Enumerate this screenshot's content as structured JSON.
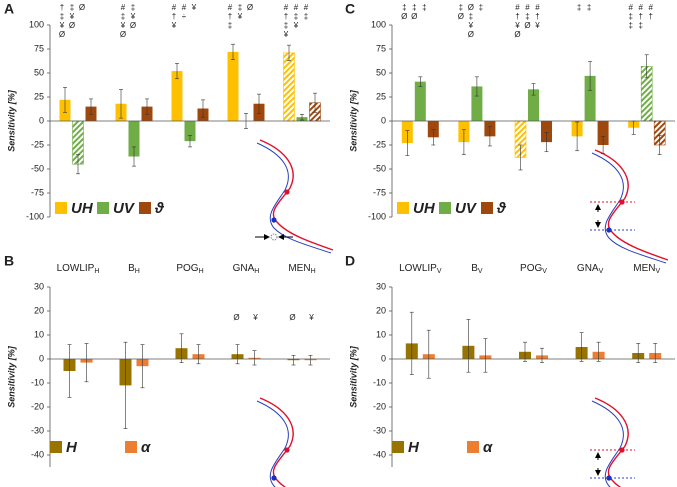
{
  "chart_data": [
    {
      "type": "bar",
      "panel_label": "A",
      "ylabel": "Sensitivity [%]",
      "ylim": [
        -100,
        100
      ],
      "yticks": [
        -100,
        -75,
        -50,
        -25,
        0,
        25,
        50,
        75,
        100
      ],
      "series": [
        {
          "name": "UH",
          "color": "#ffc000",
          "values": [
            22,
            18,
            52,
            72,
            71
          ],
          "errors": [
            13,
            15,
            8,
            8,
            8
          ],
          "hatched": [
            false,
            false,
            false,
            false,
            true
          ]
        },
        {
          "name": "UV",
          "color": "#70ad47",
          "values": [
            -45,
            -37,
            -21,
            0,
            4
          ],
          "errors": [
            10,
            10,
            6,
            8,
            3
          ],
          "hatched": [
            true,
            false,
            false,
            false,
            false
          ]
        },
        {
          "name": "ϑ",
          "color": "#9e480e",
          "values": [
            15,
            15,
            13,
            18,
            19
          ],
          "errors": [
            8,
            8,
            9,
            10,
            10
          ],
          "hatched": [
            false,
            false,
            false,
            false,
            true
          ]
        }
      ],
      "significance": [
        [
          [
            "†",
            "‡",
            "¥",
            "Ø"
          ],
          [
            "‡",
            "¥",
            "Ø"
          ],
          [
            "Ø"
          ]
        ],
        [
          [
            "#",
            "‡",
            "¥",
            "Ø"
          ],
          [
            "‡",
            "¥",
            "Ø"
          ]
        ],
        [
          [
            "#",
            "†",
            "¥"
          ],
          [
            "#",
            "÷"
          ],
          [
            "¥"
          ]
        ],
        [
          [
            "#",
            "†",
            "‡"
          ],
          [
            "‡",
            "¥"
          ],
          [
            "Ø"
          ]
        ],
        [
          [
            "#",
            "†",
            "‡",
            "¥"
          ],
          [
            "#",
            "‡",
            "¥"
          ],
          [
            "#",
            "‡"
          ]
        ]
      ]
    },
    {
      "type": "bar",
      "panel_label": "B",
      "ylabel": "Sensitivity [%]",
      "categories": [
        {
          "base": "LOWLIP",
          "sub": "H"
        },
        {
          "base": "B",
          "sub": "H"
        },
        {
          "base": "POG",
          "sub": "H"
        },
        {
          "base": "GNA",
          "sub": "H"
        },
        {
          "base": "MEN",
          "sub": "H"
        }
      ],
      "ylim": [
        -45,
        30
      ],
      "yticks": [
        -40,
        -30,
        -20,
        -10,
        0,
        10,
        20,
        30
      ],
      "series": [
        {
          "name": "H",
          "color": "#997300",
          "values": [
            -5,
            -11,
            4.5,
            2,
            -0.5
          ],
          "errors": [
            11,
            18,
            6,
            4,
            2
          ],
          "hatched": [
            false,
            false,
            false,
            false,
            false
          ]
        },
        {
          "name": "α",
          "color": "#ed7d31",
          "values": [
            -1.5,
            -3,
            2,
            0.5,
            -0.5
          ],
          "errors": [
            8,
            9,
            4,
            3,
            2
          ],
          "hatched": [
            false,
            false,
            false,
            false,
            false
          ]
        }
      ],
      "significance": [
        [],
        [],
        [],
        [
          [
            "Ø"
          ],
          [
            "¥"
          ]
        ],
        [
          [
            "Ø"
          ],
          [
            "¥"
          ]
        ]
      ]
    },
    {
      "type": "bar",
      "panel_label": "C",
      "ylabel": "Sensitivity [%]",
      "ylim": [
        -100,
        100
      ],
      "yticks": [
        -100,
        -75,
        -50,
        -25,
        0,
        25,
        50,
        75,
        100
      ],
      "series": [
        {
          "name": "UH",
          "color": "#ffc000",
          "values": [
            -23,
            -22,
            -38,
            -16,
            -7
          ],
          "errors": [
            13,
            13,
            13,
            15,
            7
          ],
          "hatched": [
            false,
            false,
            true,
            false,
            false
          ]
        },
        {
          "name": "UV",
          "color": "#70ad47",
          "values": [
            41,
            36,
            33,
            47,
            57
          ],
          "errors": [
            5,
            10,
            6,
            15,
            12
          ],
          "hatched": [
            false,
            false,
            false,
            false,
            true
          ]
        },
        {
          "name": "ϑ",
          "color": "#9e480e",
          "values": [
            -17,
            -16,
            -22,
            -25,
            -25
          ],
          "errors": [
            8,
            10,
            10,
            9,
            10
          ],
          "hatched": [
            false,
            false,
            false,
            false,
            true
          ]
        }
      ],
      "significance": [
        [
          [
            "‡",
            "Ø"
          ],
          [
            "‡",
            "Ø"
          ],
          [
            "‡"
          ]
        ],
        [
          [
            "‡",
            "Ø"
          ],
          [
            "Ø",
            "‡",
            "¥",
            "Ø"
          ],
          [
            "‡"
          ]
        ],
        [
          [
            "#",
            "†",
            "¥",
            "Ø"
          ],
          [
            "#",
            "‡",
            "Ø"
          ],
          [
            "#",
            "†",
            "¥"
          ]
        ],
        [
          [
            "‡"
          ],
          [
            "‡"
          ]
        ],
        [
          [
            "#",
            "‡",
            "‡"
          ],
          [
            "#",
            "†",
            "‡"
          ],
          [
            "#",
            "†"
          ]
        ]
      ]
    },
    {
      "type": "bar",
      "panel_label": "D",
      "ylabel": "Sensitivity [%]",
      "categories": [
        {
          "base": "LOWLIP",
          "sub": "V"
        },
        {
          "base": "B",
          "sub": "V"
        },
        {
          "base": "POG",
          "sub": "V"
        },
        {
          "base": "GNA",
          "sub": "V"
        },
        {
          "base": "MEN",
          "sub": "V"
        }
      ],
      "ylim": [
        -45,
        30
      ],
      "yticks": [
        -40,
        -30,
        -20,
        -10,
        0,
        10,
        20,
        30
      ],
      "series": [
        {
          "name": "H",
          "color": "#997300",
          "values": [
            6.5,
            5.5,
            3,
            5,
            2.5
          ],
          "errors": [
            13,
            11,
            4,
            6,
            4
          ],
          "hatched": [
            false,
            false,
            false,
            false,
            false
          ]
        },
        {
          "name": "α",
          "color": "#ed7d31",
          "values": [
            2,
            1.5,
            1.5,
            3,
            2.5
          ],
          "errors": [
            10,
            7,
            3,
            4,
            4
          ],
          "hatched": [
            false,
            false,
            false,
            false,
            false
          ]
        }
      ],
      "significance": [
        [],
        [],
        [],
        [],
        []
      ]
    }
  ]
}
